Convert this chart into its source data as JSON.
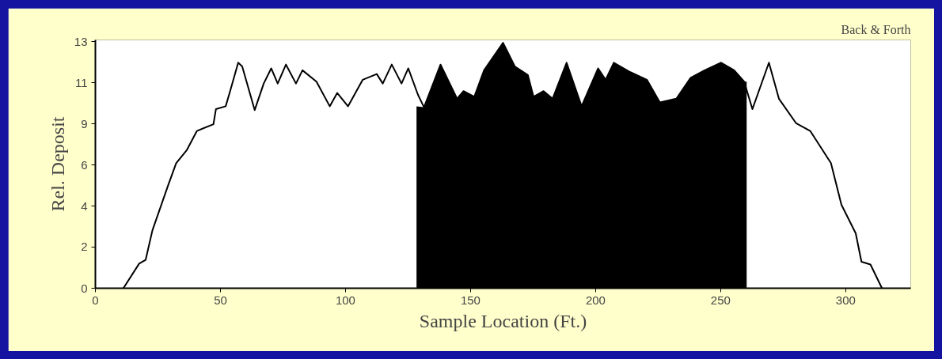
{
  "chart_data": {
    "type": "line",
    "title": "Back & Forth",
    "xlabel": "Sample Location (Ft.)",
    "ylabel": "Rel. Deposit",
    "xlim": [
      0,
      326
    ],
    "xticks": [
      0,
      50,
      100,
      150,
      200,
      250,
      300
    ],
    "ylim": [
      0,
      13.1
    ],
    "yticks": [
      {
        "value": 0,
        "label": "0"
      },
      {
        "value": 2.17,
        "label": "2"
      },
      {
        "value": 4.33,
        "label": "4"
      },
      {
        "value": 6.5,
        "label": "6"
      },
      {
        "value": 8.67,
        "label": "9"
      },
      {
        "value": 10.83,
        "label": "11"
      },
      {
        "value": 13,
        "label": "13"
      }
    ],
    "grid": false,
    "series": [
      {
        "color": "#000000",
        "x": [
          11.2,
          17.5,
          20.1,
          22.8,
          29.0,
          32.3,
          36.6,
          40.6,
          47.2,
          48.2,
          52.1,
          54.1,
          57.1,
          58.7,
          63.7,
          67.3,
          70.3,
          72.9,
          76.2,
          80.2,
          82.8,
          88.4,
          93.7,
          96.7,
          101.0,
          106.9,
          112.5,
          114.9,
          118.5,
          122.4,
          125.1,
          129.0,
          131.4,
          138.0,
          144.6,
          147.2,
          151.5,
          155.4,
          163.0,
          167.7,
          172.9,
          175.2,
          179.2,
          182.8,
          188.4,
          194.4,
          201.0,
          204.0,
          207.3,
          213.9,
          220.5,
          225.7,
          232.3,
          238.0,
          243.6,
          250.2,
          255.4,
          259.4,
          262.7,
          269.3,
          273.3,
          280.2,
          285.8,
          294.1,
          298.3,
          304.0,
          306.3,
          309.9,
          314.5
        ],
        "values": [
          0,
          1.3,
          1.5,
          3.05,
          5.4,
          6.6,
          7.3,
          8.3,
          8.65,
          9.45,
          9.6,
          10.5,
          11.9,
          11.7,
          9.4,
          10.8,
          11.6,
          10.8,
          11.8,
          10.8,
          11.5,
          10.9,
          9.6,
          10.3,
          9.6,
          11.0,
          11.3,
          10.8,
          11.8,
          10.8,
          11.6,
          10.2,
          9.55,
          11.8,
          10.0,
          10.4,
          10.1,
          11.5,
          12.95,
          11.7,
          11.25,
          10.1,
          10.4,
          10.0,
          11.9,
          9.6,
          11.6,
          11.0,
          11.9,
          11.4,
          11.0,
          9.8,
          10.0,
          11.1,
          11.5,
          11.9,
          11.5,
          10.9,
          9.45,
          11.9,
          10.0,
          8.7,
          8.3,
          6.6,
          4.4,
          2.9,
          1.4,
          1.25,
          0
        ]
      },
      {
        "type": "area",
        "color": "#000000",
        "x": [
          128.4,
          131.4,
          138.0,
          144.6,
          147.2,
          151.5,
          155.4,
          163.0,
          167.7,
          172.9,
          175.2,
          179.2,
          182.8,
          188.4,
          194.4,
          201.0,
          204.0,
          207.3,
          213.9,
          220.5,
          225.7,
          232.3,
          238.0,
          243.6,
          250.2,
          255.4,
          259.4,
          260.4
        ],
        "values": [
          9.6,
          9.55,
          11.8,
          10.0,
          10.4,
          10.1,
          11.5,
          12.95,
          11.7,
          11.25,
          10.1,
          10.4,
          10.0,
          11.9,
          9.6,
          11.6,
          11.0,
          11.9,
          11.4,
          11.0,
          9.8,
          10.0,
          11.1,
          11.5,
          11.9,
          11.5,
          10.9,
          10.9
        ]
      }
    ]
  }
}
